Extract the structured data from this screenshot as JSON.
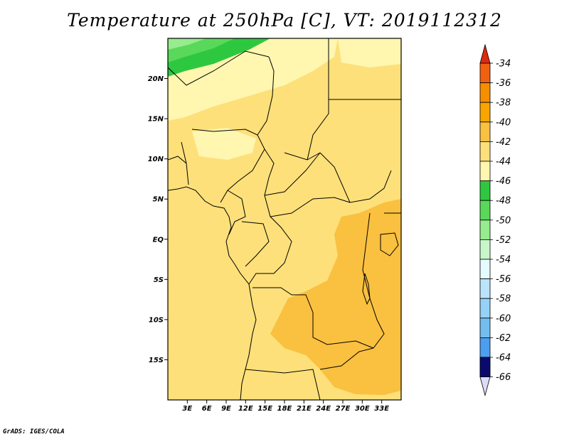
{
  "title": "Temperature at 250hPa [C], VT: 2019112312",
  "credit": "GrADS: IGES/COLA",
  "map": {
    "lat_range": [
      -20,
      25
    ],
    "lon_range": [
      0,
      36
    ],
    "y_ticks": [
      {
        "lat": 20,
        "label": "20N"
      },
      {
        "lat": 15,
        "label": "15N"
      },
      {
        "lat": 10,
        "label": "10N"
      },
      {
        "lat": 5,
        "label": "5N"
      },
      {
        "lat": 0,
        "label": "EQ"
      },
      {
        "lat": -5,
        "label": "5S"
      },
      {
        "lat": -10,
        "label": "10S"
      },
      {
        "lat": -15,
        "label": "15S"
      }
    ],
    "x_ticks": [
      {
        "lon": 3,
        "label": "3E"
      },
      {
        "lon": 6,
        "label": "6E"
      },
      {
        "lon": 9,
        "label": "9E"
      },
      {
        "lon": 12,
        "label": "12E"
      },
      {
        "lon": 15,
        "label": "15E"
      },
      {
        "lon": 18,
        "label": "18E"
      },
      {
        "lon": 21,
        "label": "21E"
      },
      {
        "lon": 24,
        "label": "24E"
      },
      {
        "lon": 27,
        "label": "27E"
      },
      {
        "lon": 30,
        "label": "30E"
      },
      {
        "lon": 33,
        "label": "33E"
      }
    ]
  },
  "colorbar": {
    "levels": [
      {
        "label": "-34",
        "color": "#f06010"
      },
      {
        "label": "-36",
        "color": "#f58e00"
      },
      {
        "label": "-38",
        "color": "#f8a500"
      },
      {
        "label": "-40",
        "color": "#fac040"
      },
      {
        "label": "-42",
        "color": "#fde07a"
      },
      {
        "label": "-44",
        "color": "#fff6b0"
      },
      {
        "label": "-46",
        "color": "#2ec840"
      },
      {
        "label": "-48",
        "color": "#5ad85a"
      },
      {
        "label": "-50",
        "color": "#96ec8e"
      },
      {
        "label": "-52",
        "color": "#c8f6c8"
      },
      {
        "label": "-54",
        "color": "#e6fbff"
      },
      {
        "label": "-56",
        "color": "#bae4fa"
      },
      {
        "label": "-58",
        "color": "#96d2f8"
      },
      {
        "label": "-60",
        "color": "#74beef"
      },
      {
        "label": "-62",
        "color": "#4c9ef0"
      },
      {
        "label": "-64",
        "color": "#2e7adc"
      },
      {
        "label": "-66",
        "color": "#1a52c8"
      }
    ],
    "top_color": "#e02810",
    "bottom_colors": [
      "#0c2a9c",
      "#0a0a6e"
    ],
    "below_color": "#dcdcf8"
  },
  "palette": {
    "frame_bg": "#fde07a",
    "warm": "#fac040",
    "cool": "#fff6b0",
    "green1": "#2ec840",
    "green2": "#5ad85a",
    "green3": "#96ec8e"
  }
}
